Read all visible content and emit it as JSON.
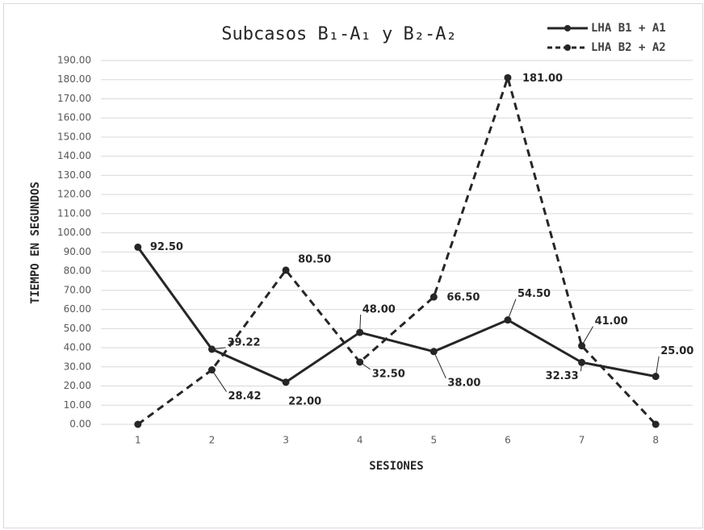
{
  "chart_data": {
    "type": "line",
    "title": "Subcasos B₁-A₁ y B₂-A₂",
    "x_label": "SESIONES",
    "y_label": "TIEMPO EN SEGUNDOS",
    "categories": [
      "1",
      "2",
      "3",
      "4",
      "5",
      "6",
      "7",
      "8"
    ],
    "series": [
      {
        "name": "LHA B1 + A1",
        "color": "#262626",
        "dashed": false,
        "values": [
          92.5,
          39.22,
          22,
          48,
          38,
          54.5,
          32.33,
          25
        ],
        "value_labels": [
          "92.50",
          "39.22",
          "22.00",
          "48.00",
          "38.00",
          "54.50",
          "32.33",
          "25.00"
        ]
      },
      {
        "name": "LHA B2 + A2",
        "color": "#262626",
        "dashed": true,
        "values": [
          0,
          28.42,
          80.5,
          32.5,
          66.5,
          181,
          41,
          0
        ],
        "value_labels": [
          null,
          "28.42",
          "80.50",
          "32.50",
          "66.50",
          "181.00",
          "41.00",
          null
        ]
      }
    ],
    "ylim": [
      0,
      190
    ],
    "yticks": [
      {
        "value": 0,
        "label": "0.00"
      },
      {
        "value": 10,
        "label": "10.00"
      },
      {
        "value": 20,
        "label": "20.00"
      },
      {
        "value": 30,
        "label": "30.00"
      },
      {
        "value": 40,
        "label": "40.00"
      },
      {
        "value": 50,
        "label": "50.00"
      },
      {
        "value": 60,
        "label": "60.00"
      },
      {
        "value": 70,
        "label": "70.00"
      },
      {
        "value": 80,
        "label": "80.00"
      },
      {
        "value": 90,
        "label": "90.00"
      },
      {
        "value": 100,
        "label": "100.00"
      },
      {
        "value": 110,
        "label": "110.00"
      },
      {
        "value": 120,
        "label": "120.00"
      },
      {
        "value": 130,
        "label": "130.00"
      },
      {
        "value": 140,
        "label": "140.00"
      },
      {
        "value": 150,
        "label": "150.00"
      },
      {
        "value": 160,
        "label": "160.00"
      },
      {
        "value": 170,
        "label": "170.00"
      },
      {
        "value": 180,
        "label": "180.00"
      },
      {
        "value": 190,
        "label": "190.00"
      }
    ],
    "grid": true,
    "legend": "top-right"
  }
}
